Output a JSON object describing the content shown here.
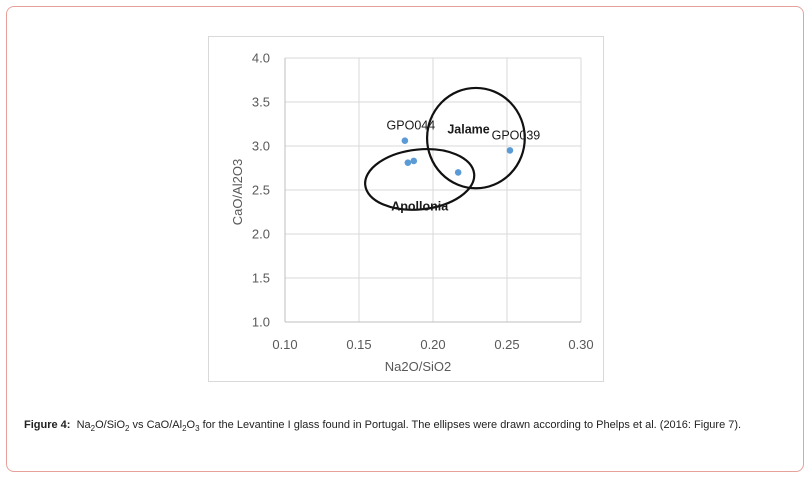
{
  "chart_data": {
    "type": "scatter",
    "title": "",
    "xlabel": "Na2O/SiO2",
    "ylabel": "CaO/Al2O3",
    "xlim": [
      0.1,
      0.3
    ],
    "ylim": [
      1.0,
      4.0
    ],
    "x_ticks": [
      0.1,
      0.15,
      0.2,
      0.25,
      0.3
    ],
    "y_ticks": [
      1.0,
      1.5,
      2.0,
      2.5,
      3.0,
      3.5,
      4.0
    ],
    "x_tick_labels": [
      "0.10",
      "0.15",
      "0.20",
      "0.25",
      "0.30"
    ],
    "y_tick_labels": [
      "1.0",
      "1.5",
      "2.0",
      "2.5",
      "3.0",
      "3.5",
      "4.0"
    ],
    "grid": true,
    "series": [
      {
        "name": "Levantine I glass",
        "color": "#5b9bd5",
        "points": [
          {
            "x": 0.181,
            "y": 3.06,
            "label": "GPO044"
          },
          {
            "x": 0.183,
            "y": 2.81,
            "label": ""
          },
          {
            "x": 0.187,
            "y": 2.83,
            "label": ""
          },
          {
            "x": 0.217,
            "y": 2.7,
            "label": ""
          },
          {
            "x": 0.252,
            "y": 2.95,
            "label": "GPO039"
          }
        ]
      }
    ],
    "ellipses": [
      {
        "name": "Apollonia",
        "cx": 0.191,
        "cy": 2.62,
        "rx": 0.037,
        "ry": 0.34,
        "angle": -6
      },
      {
        "name": "Jalame",
        "cx": 0.229,
        "cy": 3.09,
        "rx": 0.033,
        "ry": 0.57,
        "angle": 0
      }
    ],
    "annotations": [
      {
        "text": "Apollonia",
        "x": 0.191,
        "y": 2.31,
        "bold": true
      },
      {
        "text": "Jalame",
        "x": 0.224,
        "y": 3.19,
        "bold": true
      }
    ]
  },
  "caption": {
    "label": "Figure 4:",
    "text_html": "Na<sub>2</sub>O/SiO<sub>2</sub> vs CaO/Al<sub>2</sub>O<sub>3</sub> for the Levantine I glass found in Portugal. The ellipses were drawn according to Phelps et al. (2016: Figure 7)."
  }
}
